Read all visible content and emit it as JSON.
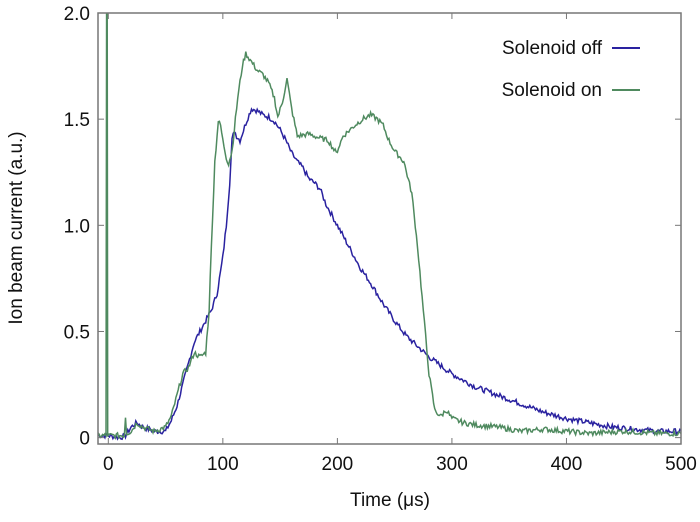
{
  "chart_data": {
    "type": "line",
    "title": "",
    "xlabel": "Time (μs)",
    "ylabel": "Ion beam current (a.u.)",
    "xlim": [
      -9,
      500
    ],
    "ylim": [
      -0.03,
      2.0
    ],
    "xticks": [
      "0",
      "100",
      "200",
      "300",
      "400",
      "500"
    ],
    "xtick_values": [
      0,
      100,
      200,
      300,
      400,
      500
    ],
    "yticks": [
      "0",
      "0.5",
      "1.0",
      "1.5",
      "2.0"
    ],
    "ytick_values": [
      0,
      0.5,
      1.0,
      1.5,
      2.0
    ],
    "grid": false,
    "legend_position": "top-right",
    "series": [
      {
        "name": "Solenoid off",
        "color": "#2a22a0",
        "x": [
          -9,
          -2,
          -1,
          0,
          10,
          15,
          20,
          25,
          30,
          40,
          50,
          55,
          60,
          65,
          70,
          75,
          80,
          85,
          90,
          95,
          100,
          103,
          106,
          108,
          110,
          112,
          115,
          120,
          125,
          130,
          135,
          140,
          145,
          150,
          155,
          160,
          165,
          170,
          175,
          180,
          185,
          190,
          200,
          210,
          220,
          230,
          240,
          250,
          260,
          270,
          280,
          290,
          300,
          320,
          340,
          360,
          380,
          400,
          420,
          440,
          460,
          480,
          500
        ],
        "y": [
          0.01,
          0.01,
          0.01,
          0.01,
          0.0,
          0.01,
          0.05,
          0.07,
          0.05,
          0.03,
          0.03,
          0.08,
          0.15,
          0.25,
          0.35,
          0.45,
          0.5,
          0.55,
          0.6,
          0.68,
          0.85,
          1.0,
          1.2,
          1.4,
          1.45,
          1.42,
          1.4,
          1.48,
          1.55,
          1.54,
          1.52,
          1.51,
          1.49,
          1.45,
          1.4,
          1.34,
          1.3,
          1.27,
          1.22,
          1.2,
          1.17,
          1.1,
          1.0,
          0.9,
          0.8,
          0.72,
          0.63,
          0.55,
          0.48,
          0.43,
          0.38,
          0.34,
          0.3,
          0.24,
          0.2,
          0.16,
          0.12,
          0.09,
          0.07,
          0.05,
          0.04,
          0.03,
          0.03
        ]
      },
      {
        "name": "Solenoid on",
        "color": "#4f8a5f",
        "x": [
          -9,
          -2,
          -1.5,
          -1,
          -0.5,
          0,
          14,
          15,
          16,
          20,
          25,
          30,
          40,
          50,
          55,
          60,
          65,
          70,
          75,
          80,
          85,
          88,
          90,
          93,
          96,
          98,
          100,
          103,
          105,
          108,
          110,
          113,
          117,
          120,
          125,
          130,
          135,
          140,
          145,
          148,
          152,
          156,
          160,
          165,
          175,
          185,
          192,
          199,
          205,
          215,
          222,
          229,
          235,
          240,
          245,
          250,
          258,
          265,
          270,
          275,
          280,
          285,
          290,
          295,
          300,
          310,
          320,
          340,
          360,
          380,
          400,
          420,
          450,
          480,
          500
        ],
        "y": [
          0.01,
          0.01,
          2.05,
          2.05,
          0.01,
          0.01,
          0.01,
          0.1,
          0.02,
          0.03,
          0.07,
          0.05,
          0.03,
          0.05,
          0.1,
          0.2,
          0.3,
          0.33,
          0.4,
          0.38,
          0.4,
          0.6,
          0.9,
          1.3,
          1.49,
          1.47,
          1.4,
          1.32,
          1.29,
          1.35,
          1.45,
          1.6,
          1.75,
          1.81,
          1.77,
          1.73,
          1.71,
          1.67,
          1.6,
          1.51,
          1.58,
          1.69,
          1.55,
          1.42,
          1.43,
          1.41,
          1.4,
          1.34,
          1.42,
          1.47,
          1.5,
          1.52,
          1.5,
          1.47,
          1.4,
          1.35,
          1.3,
          1.15,
          0.9,
          0.6,
          0.3,
          0.13,
          0.1,
          0.13,
          0.09,
          0.07,
          0.06,
          0.05,
          0.03,
          0.04,
          0.03,
          0.02,
          0.03,
          0.02,
          0.02
        ]
      }
    ]
  }
}
